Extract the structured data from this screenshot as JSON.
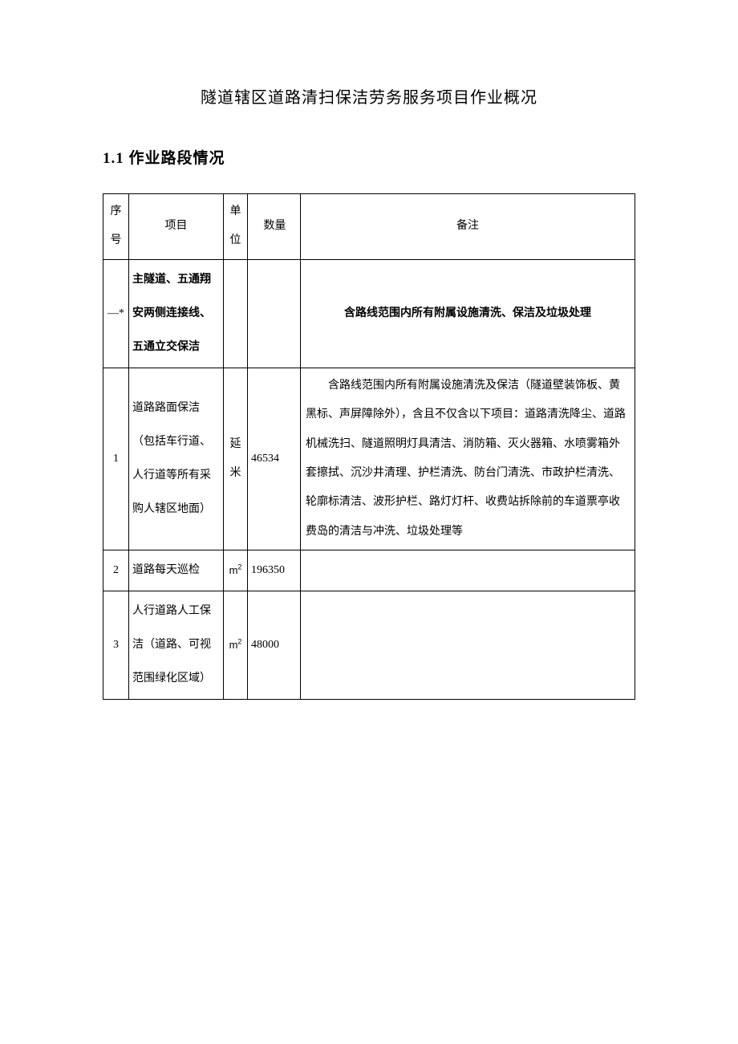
{
  "title": "隧道辖区道路清扫保洁劳务服务项目作业概况",
  "section": {
    "num": "1.1",
    "label": "作业路段情况"
  },
  "header": {
    "seq": "序号",
    "item": "项目",
    "unit": "单位",
    "qty": "数量",
    "note": "备注"
  },
  "rows": [
    {
      "seq": "—*",
      "item": "主隧道、五通翔安两侧连接线、五通立交保洁",
      "unit": "",
      "qty": "",
      "note": "含路线范围内所有附属设施清洗、保洁及垃圾处理",
      "bold": true
    },
    {
      "seq": "1",
      "item": "道路路面保洁（包括车行道、人行道等所有采购人辖区地面）",
      "unit": "延米",
      "qty": "46534",
      "note": "含路线范围内所有附属设施清洗及保洁（隧道壁装饰板、黄黑标、声屏障除外），含且不仅含以下项目：道路清洗降尘、道路机械洗扫、隧道照明灯具清洁、消防箱、灭火器箱、水喷雾箱外套擦拭、沉沙井清理、护栏清洗、防台门清洗、市政护栏清洗、轮廓标清洁、波形护栏、路灯灯杆、收费站拆除前的车道票亭收费岛的清洁与冲洗、垃圾处理等"
    },
    {
      "seq": "2",
      "item": "道路每天巡检",
      "unit": "m²",
      "qty": "196350",
      "note": ""
    },
    {
      "seq": "3",
      "item": "人行道路人工保洁（道路、可视范围绿化区域）",
      "unit": "m²",
      "qty": "48000",
      "note": ""
    }
  ],
  "style": {
    "page_bg": "#ffffff",
    "border_color": "#000000",
    "body_font_size": 14,
    "title_font_size": 20
  }
}
